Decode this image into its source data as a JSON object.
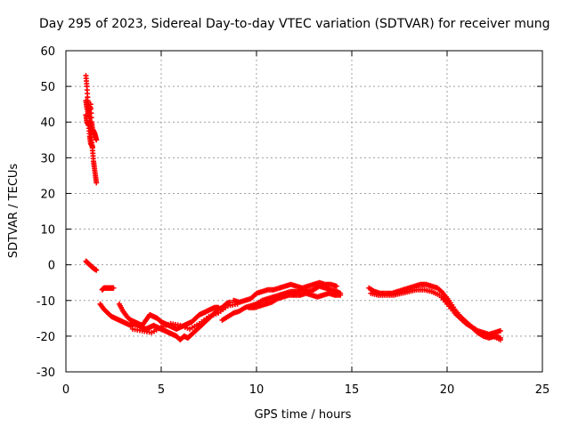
{
  "chart_data": {
    "type": "scatter",
    "title": "Day 295 of 2023, Sidereal Day-to-day VTEC variation (SDTVAR) for receiver mung",
    "xlabel": "GPS time / hours",
    "ylabel": "SDTVAR / TECUs",
    "xlim": [
      0,
      25
    ],
    "ylim": [
      -30,
      60
    ],
    "xticks": [
      0,
      5,
      10,
      15,
      20,
      25
    ],
    "yticks": [
      -30,
      -20,
      -10,
      0,
      10,
      20,
      30,
      40,
      50,
      60
    ],
    "xtick_labels": [
      "0",
      "5",
      "10",
      "15",
      "20",
      "25"
    ],
    "ytick_labels": [
      "-30",
      "-20",
      "-10",
      "0",
      "10",
      "20",
      "30",
      "40",
      "50",
      "60"
    ],
    "grid": true,
    "marker": "+",
    "color": "#ff0000",
    "series": [
      {
        "name": "SDTVAR",
        "segments": [
          {
            "x": [
              1.05,
              1.1,
              1.15,
              1.2,
              1.25,
              1.3,
              1.35,
              1.4,
              1.45,
              1.5,
              1.55,
              1.6
            ],
            "y": [
              53,
              50,
              46,
              44,
              41,
              38,
              35,
              32,
              29,
              27,
              25,
              23
            ]
          },
          {
            "x": [
              1.05,
              1.1,
              1.2,
              1.3,
              1.35,
              1.4,
              1.5,
              1.55,
              1.6
            ],
            "y": [
              46,
              44,
              42,
              45,
              40,
              38,
              37,
              36,
              35
            ]
          },
          {
            "x": [
              1.05,
              1.1,
              1.2,
              1.25,
              1.3,
              1.4
            ],
            "y": [
              42,
              40,
              39,
              36,
              34,
              33
            ]
          },
          {
            "x": [
              1.05,
              1.15,
              1.25,
              1.35,
              1.45,
              1.6
            ],
            "y": [
              1,
              0.5,
              0,
              -0.5,
              -1,
              -1.5
            ]
          },
          {
            "x": [
              1.9,
              2.0,
              2.1,
              2.2,
              2.3,
              2.4,
              2.5
            ],
            "y": [
              -7,
              -6.5,
              -6.5,
              -6.5,
              -6.5,
              -6.5,
              -6.5
            ]
          },
          {
            "x": [
              1.8,
              2.0,
              2.2,
              2.4,
              2.6,
              2.8,
              3.0,
              3.2,
              3.4,
              3.6,
              3.8,
              4.0,
              4.2,
              4.4,
              4.6,
              4.8,
              5.0,
              5.2,
              5.4,
              5.6,
              5.8,
              6.0,
              6.2,
              6.4,
              6.6,
              6.8,
              7.0,
              7.2,
              7.4,
              7.6,
              7.8,
              8.0,
              8.2,
              8.4,
              8.6
            ],
            "y": [
              -11,
              -12.5,
              -13.5,
              -14.5,
              -15,
              -15.5,
              -16,
              -16.5,
              -17,
              -16.5,
              -17,
              -17.5,
              -18,
              -17.5,
              -17,
              -17.5,
              -18,
              -18.5,
              -19,
              -19.5,
              -20,
              -21,
              -20,
              -20.5,
              -19.5,
              -18.5,
              -17.5,
              -16.5,
              -15.5,
              -14.5,
              -13.5,
              -12.5,
              -12,
              -11,
              -10.5
            ]
          },
          {
            "x": [
              2.8,
              3.0,
              3.2,
              3.4,
              3.6,
              3.8,
              4.0,
              4.2,
              4.4,
              4.6,
              4.8,
              5.0,
              5.2,
              5.4,
              5.6,
              5.8,
              6.0,
              6.2,
              6.4,
              6.6,
              6.8,
              7.0,
              7.2,
              7.4,
              7.6,
              7.8,
              8.0
            ],
            "y": [
              -11,
              -13,
              -14.5,
              -15.5,
              -16,
              -16.5,
              -17,
              -15.5,
              -14,
              -14.5,
              -15,
              -16,
              -16.5,
              -17,
              -17.5,
              -18,
              -17.5,
              -17,
              -16.5,
              -16,
              -15,
              -14,
              -13.5,
              -13,
              -12.5,
              -12,
              -12
            ]
          },
          {
            "x": [
              3.5,
              4.0,
              4.5,
              5.0,
              5.5,
              6.0,
              6.5,
              7.0,
              7.5,
              8.0,
              8.5,
              9.0
            ],
            "y": [
              -18,
              -18.5,
              -19,
              -17.5,
              -16.5,
              -17,
              -18,
              -16.5,
              -14.5,
              -13.5,
              -11.5,
              -11
            ]
          },
          {
            "x": [
              8.2,
              8.5,
              8.8,
              9.1,
              9.4,
              9.7,
              10.0,
              10.3,
              10.6,
              10.9,
              11.2,
              11.5,
              11.8,
              12.1,
              12.4,
              12.7,
              13.0,
              13.3,
              13.6,
              13.9,
              14.2,
              14.4
            ],
            "y": [
              -15.5,
              -14.5,
              -13.5,
              -13,
              -12,
              -11.5,
              -11,
              -10,
              -9.5,
              -9,
              -8.5,
              -8,
              -7.5,
              -7.5,
              -7,
              -7.5,
              -7,
              -6,
              -6.5,
              -7,
              -7.5,
              -8
            ]
          },
          {
            "x": [
              8.8,
              9.1,
              9.4,
              9.7,
              10.0,
              10.3,
              10.6,
              10.9,
              11.2,
              11.5,
              11.8,
              12.1,
              12.4,
              12.7,
              13.0,
              13.3,
              13.6,
              13.9,
              14.2
            ],
            "y": [
              -10,
              -10.5,
              -10,
              -9.5,
              -8,
              -7.5,
              -7,
              -7,
              -6.5,
              -6,
              -5.5,
              -6,
              -6.5,
              -6,
              -5.5,
              -5,
              -5.5,
              -5.5,
              -6
            ]
          },
          {
            "x": [
              9.6,
              9.9,
              10.2,
              10.5,
              10.8,
              11.1,
              11.4,
              11.7,
              12.0,
              12.3,
              12.6,
              12.9,
              13.2,
              13.5,
              13.8,
              14.1,
              14.4
            ],
            "y": [
              -12,
              -12,
              -11.5,
              -11,
              -10.5,
              -9.5,
              -9,
              -8.5,
              -8.5,
              -8.5,
              -8,
              -8.5,
              -9,
              -8.5,
              -8,
              -8.5,
              -8.5
            ]
          },
          {
            "x": [
              15.9,
              16.2,
              16.5,
              16.8,
              17.1,
              17.4,
              17.7,
              18.0,
              18.3,
              18.6,
              18.9,
              19.2,
              19.5,
              19.8,
              20.1,
              20.4,
              20.7,
              21.0,
              21.3,
              21.6,
              21.9,
              22.2,
              22.5,
              22.8
            ],
            "y": [
              -6.5,
              -7.5,
              -8,
              -8,
              -8,
              -7.5,
              -7,
              -6.5,
              -6,
              -5.5,
              -5.5,
              -6,
              -6.5,
              -8,
              -10,
              -12.5,
              -14.5,
              -16,
              -17.5,
              -18.5,
              -19,
              -19.5,
              -19,
              -18.5
            ]
          },
          {
            "x": [
              16.0,
              16.4,
              16.8,
              17.2,
              17.6,
              18.0,
              18.4,
              18.8,
              19.2,
              19.6,
              20.0,
              20.4,
              20.8,
              21.2,
              21.6,
              22.0,
              22.4,
              22.8
            ],
            "y": [
              -8,
              -8.5,
              -8.5,
              -8.5,
              -8,
              -7.5,
              -7,
              -7,
              -7.5,
              -8.5,
              -11,
              -13.5,
              -15.5,
              -17,
              -18.5,
              -19.5,
              -20,
              -21
            ]
          },
          {
            "x": [
              19.8,
              20.1,
              20.4,
              20.7,
              21.0,
              21.3,
              21.6,
              21.9,
              22.2,
              22.5,
              22.8
            ],
            "y": [
              -9,
              -11,
              -13.5,
              -15,
              -16.5,
              -17.5,
              -19,
              -20,
              -20.5,
              -20,
              -20.5
            ]
          }
        ]
      }
    ]
  }
}
